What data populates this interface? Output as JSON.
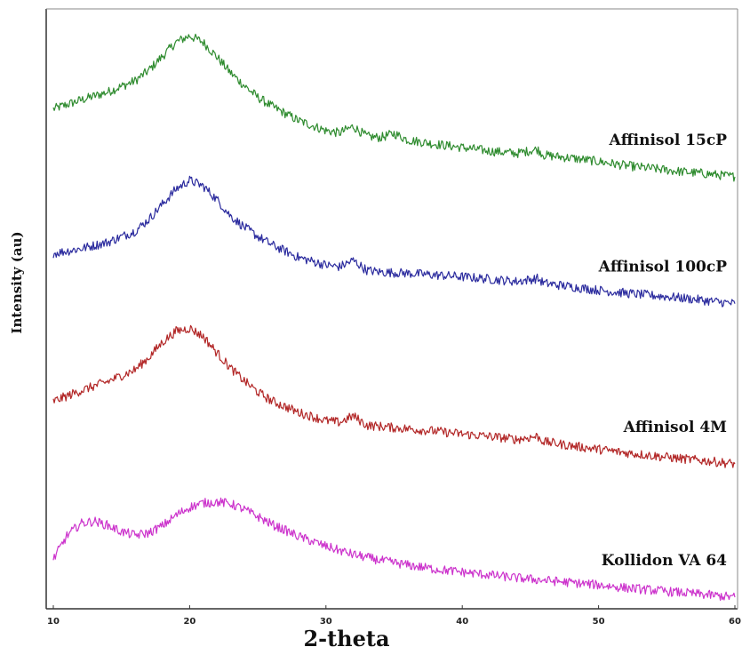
{
  "chart_data": {
    "type": "line",
    "title": "",
    "xlabel": "2-theta",
    "ylabel": "Intensity (au)",
    "xlim": [
      10,
      60
    ],
    "xticks": [
      10,
      20,
      30,
      40,
      50,
      60
    ],
    "ylim": [
      0,
      100
    ],
    "grid": false,
    "legend": "labels placed at the right end of each curve",
    "series": [
      {
        "name": "Affinisol 15cP",
        "color": "#2e8b2e",
        "x": [
          10,
          12,
          14,
          16,
          17,
          18,
          19,
          20,
          21,
          22,
          23,
          24,
          25,
          26,
          28,
          30,
          31,
          32,
          33,
          34,
          35,
          36,
          38,
          40,
          42,
          44,
          45.5,
          46,
          48,
          50,
          52,
          54,
          56,
          58,
          60
        ],
        "y": [
          83.5,
          85.0,
          86.4,
          88.3,
          90.1,
          92.5,
          94.9,
          96.0,
          94.9,
          92.4,
          89.7,
          87.5,
          85.5,
          84.0,
          81.5,
          79.8,
          79.4,
          80.5,
          78.8,
          78.6,
          79.3,
          78.2,
          77.5,
          76.9,
          76.3,
          75.9,
          76.6,
          75.6,
          75.1,
          74.5,
          73.8,
          73.3,
          72.8,
          72.4,
          71.9
        ]
      },
      {
        "name": "Affinisol 100cP",
        "color": "#2b2b9e",
        "x": [
          10,
          12,
          14,
          16,
          17,
          18,
          19,
          20,
          21,
          22,
          23,
          24,
          25,
          26,
          28,
          30,
          31,
          32,
          33,
          34,
          36,
          38,
          40,
          42,
          44,
          45.5,
          46,
          48,
          50,
          52,
          54,
          56,
          58,
          60
        ],
        "y": [
          58.8,
          59.6,
          60.7,
          62.6,
          64.6,
          67.2,
          69.8,
          71.3,
          70.3,
          68.0,
          65.2,
          63.3,
          61.7,
          60.3,
          58.1,
          56.8,
          56.5,
          57.6,
          55.9,
          55.6,
          55.4,
          55.1,
          54.8,
          54.4,
          54.0,
          54.5,
          53.7,
          53.1,
          52.5,
          52.0,
          51.6,
          51.2,
          50.7,
          50.2
        ]
      },
      {
        "name": "Affinisol 4M",
        "color": "#b22626",
        "x": [
          10,
          12,
          14,
          16,
          17,
          18,
          19,
          20,
          21,
          22,
          23,
          24,
          25,
          26,
          28,
          30,
          31,
          32,
          33,
          34,
          36,
          38,
          40,
          42,
          44,
          45.5,
          46,
          48,
          50,
          52,
          54,
          56,
          58,
          60
        ],
        "y": [
          33.5,
          35.3,
          36.9,
          38.9,
          41.0,
          43.6,
          45.5,
          46.0,
          44.6,
          41.8,
          39.2,
          37.0,
          35.1,
          33.6,
          31.6,
          30.2,
          29.9,
          31.0,
          29.4,
          29.2,
          28.8,
          28.4,
          27.9,
          27.5,
          27.0,
          27.5,
          26.6,
          25.9,
          25.3,
          24.7,
          24.2,
          23.7,
          23.3,
          22.8
        ]
      },
      {
        "name": "Kollidon VA 64",
        "color": "#cc33cc",
        "x": [
          10,
          11,
          12,
          13,
          14,
          15,
          16,
          17,
          18,
          19,
          20,
          21,
          22,
          23,
          24,
          25,
          26,
          28,
          30,
          32,
          34,
          36,
          38,
          40,
          42,
          44,
          46,
          48,
          50,
          52,
          54,
          56,
          58,
          60
        ],
        "y": [
          6.5,
          10.5,
          12.6,
          13.0,
          12.3,
          11.2,
          10.6,
          11.0,
          12.2,
          14.0,
          15.4,
          16.1,
          16.3,
          16.0,
          15.0,
          13.8,
          12.5,
          10.4,
          8.7,
          7.3,
          6.3,
          5.5,
          4.8,
          4.3,
          3.8,
          3.3,
          2.9,
          2.5,
          2.1,
          1.6,
          1.2,
          0.8,
          0.4,
          0.0
        ]
      }
    ]
  }
}
